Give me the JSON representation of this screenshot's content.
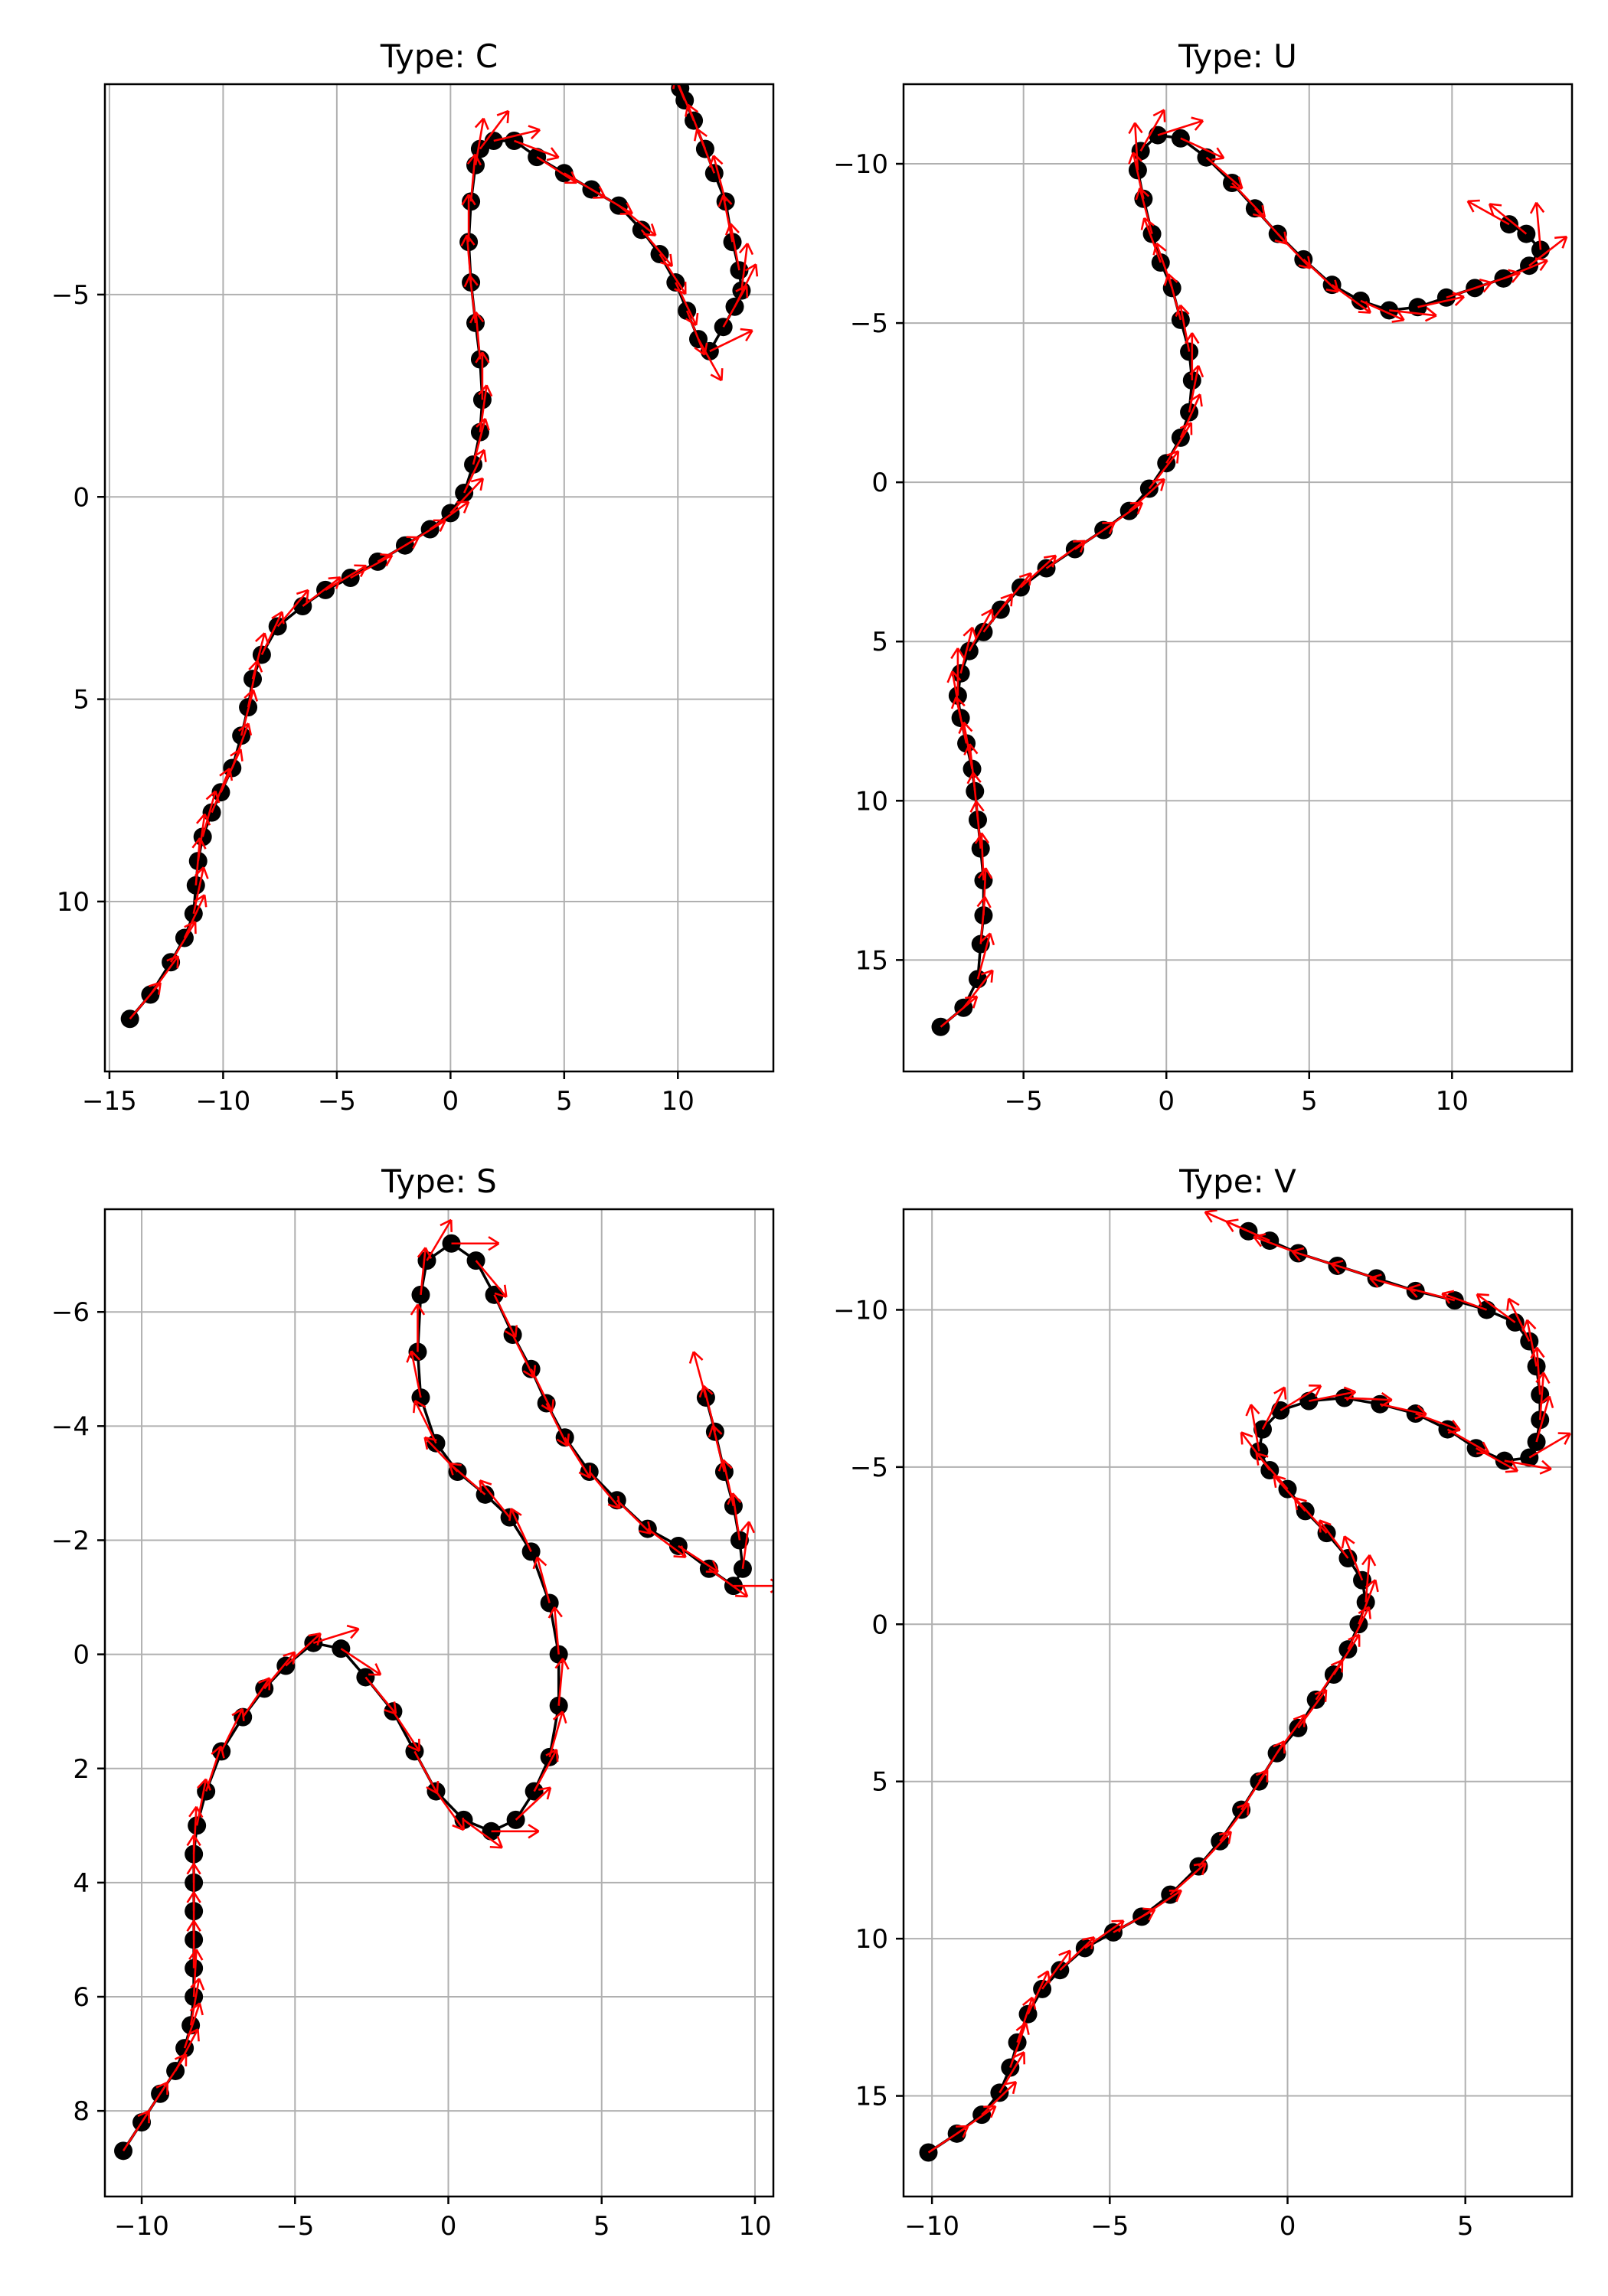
{
  "chart_data": [
    {
      "type": "scatter",
      "title": "Type: C",
      "xlim": [
        -15.2,
        14.2
      ],
      "ylim": [
        -10.2,
        14.2
      ],
      "y_inverted": true,
      "grid": true,
      "xticks": [
        -15,
        -10,
        -5,
        0,
        5,
        10
      ],
      "xtick_labels": [
        "−15",
        "−10",
        "−5",
        "0",
        "5",
        "10"
      ],
      "yticks": [
        -5,
        0,
        5,
        10
      ],
      "ytick_labels": [
        "−5",
        "0",
        "5",
        "10"
      ],
      "line_color": "#000000",
      "marker_color": "#000000",
      "arrow_color": "#ff0000",
      "points": [
        [
          -14.1,
          12.9
        ],
        [
          -13.2,
          12.3
        ],
        [
          -12.3,
          11.5
        ],
        [
          -11.7,
          10.9
        ],
        [
          -11.3,
          10.3
        ],
        [
          -11.2,
          9.6
        ],
        [
          -11.1,
          9.0
        ],
        [
          -10.9,
          8.4
        ],
        [
          -10.5,
          7.8
        ],
        [
          -10.1,
          7.3
        ],
        [
          -9.6,
          6.7
        ],
        [
          -9.2,
          5.9
        ],
        [
          -8.9,
          5.2
        ],
        [
          -8.7,
          4.5
        ],
        [
          -8.3,
          3.9
        ],
        [
          -7.6,
          3.2
        ],
        [
          -6.5,
          2.7
        ],
        [
          -5.5,
          2.3
        ],
        [
          -4.4,
          2.0
        ],
        [
          -3.2,
          1.6
        ],
        [
          -2.0,
          1.2
        ],
        [
          -0.9,
          0.8
        ],
        [
          0.0,
          0.4
        ],
        [
          0.6,
          -0.1
        ],
        [
          1.0,
          -0.8
        ],
        [
          1.3,
          -1.6
        ],
        [
          1.4,
          -2.4
        ],
        [
          1.3,
          -3.4
        ],
        [
          1.1,
          -4.3
        ],
        [
          0.9,
          -5.3
        ],
        [
          0.8,
          -6.3
        ],
        [
          0.9,
          -7.3
        ],
        [
          1.1,
          -8.2
        ],
        [
          1.3,
          -8.6
        ],
        [
          1.9,
          -8.8
        ],
        [
          2.8,
          -8.8
        ],
        [
          3.8,
          -8.4
        ],
        [
          5.0,
          -8.0
        ],
        [
          6.2,
          -7.6
        ],
        [
          7.4,
          -7.2
        ],
        [
          8.4,
          -6.6
        ],
        [
          9.2,
          -6.0
        ],
        [
          9.9,
          -5.3
        ],
        [
          10.4,
          -4.6
        ],
        [
          10.9,
          -3.9
        ],
        [
          11.4,
          -3.6
        ],
        [
          12.0,
          -4.2
        ],
        [
          12.5,
          -4.7
        ],
        [
          12.8,
          -5.1
        ],
        [
          12.7,
          -5.6
        ],
        [
          12.4,
          -6.3
        ],
        [
          12.1,
          -7.3
        ],
        [
          11.6,
          -8.0
        ],
        [
          11.2,
          -8.6
        ],
        [
          10.7,
          -9.3
        ],
        [
          10.3,
          -9.8
        ],
        [
          10.1,
          -10.1
        ]
      ]
    },
    {
      "type": "scatter",
      "title": "Type: U",
      "xlim": [
        -9.2,
        14.2
      ],
      "ylim": [
        -12.5,
        18.5
      ],
      "y_inverted": true,
      "grid": true,
      "xticks": [
        -5,
        0,
        5,
        10
      ],
      "xtick_labels": [
        "−5",
        "0",
        "5",
        "10"
      ],
      "yticks": [
        -10,
        -5,
        0,
        5,
        10,
        15
      ],
      "ytick_labels": [
        "−10",
        "−5",
        "0",
        "5",
        "10",
        "15"
      ],
      "line_color": "#000000",
      "marker_color": "#000000",
      "arrow_color": "#ff0000",
      "points": [
        [
          -7.9,
          17.1
        ],
        [
          -7.1,
          16.5
        ],
        [
          -6.6,
          15.6
        ],
        [
          -6.5,
          14.5
        ],
        [
          -6.4,
          13.6
        ],
        [
          -6.4,
          12.5
        ],
        [
          -6.5,
          11.5
        ],
        [
          -6.6,
          10.6
        ],
        [
          -6.7,
          9.7
        ],
        [
          -6.8,
          9.0
        ],
        [
          -7.0,
          8.2
        ],
        [
          -7.2,
          7.4
        ],
        [
          -7.3,
          6.7
        ],
        [
          -7.2,
          6.0
        ],
        [
          -6.9,
          5.3
        ],
        [
          -6.4,
          4.7
        ],
        [
          -5.8,
          4.0
        ],
        [
          -5.1,
          3.3
        ],
        [
          -4.2,
          2.7
        ],
        [
          -3.2,
          2.1
        ],
        [
          -2.2,
          1.5
        ],
        [
          -1.3,
          0.9
        ],
        [
          -0.6,
          0.2
        ],
        [
          0.0,
          -0.6
        ],
        [
          0.5,
          -1.4
        ],
        [
          0.8,
          -2.2
        ],
        [
          0.9,
          -3.2
        ],
        [
          0.8,
          -4.1
        ],
        [
          0.5,
          -5.1
        ],
        [
          0.2,
          -6.1
        ],
        [
          -0.2,
          -6.9
        ],
        [
          -0.5,
          -7.8
        ],
        [
          -0.8,
          -8.9
        ],
        [
          -1.0,
          -9.8
        ],
        [
          -0.9,
          -10.4
        ],
        [
          -0.3,
          -10.9
        ],
        [
          0.5,
          -10.8
        ],
        [
          1.4,
          -10.2
        ],
        [
          2.3,
          -9.4
        ],
        [
          3.1,
          -8.6
        ],
        [
          3.9,
          -7.8
        ],
        [
          4.8,
          -7.0
        ],
        [
          5.8,
          -6.2
        ],
        [
          6.8,
          -5.7
        ],
        [
          7.8,
          -5.4
        ],
        [
          8.8,
          -5.5
        ],
        [
          9.8,
          -5.8
        ],
        [
          10.8,
          -6.1
        ],
        [
          11.8,
          -6.4
        ],
        [
          12.7,
          -6.8
        ],
        [
          13.1,
          -7.3
        ],
        [
          12.6,
          -7.8
        ],
        [
          12.0,
          -8.1
        ]
      ]
    },
    {
      "type": "scatter",
      "title": "Type: S",
      "xlim": [
        -11.2,
        10.6
      ],
      "ylim": [
        -7.8,
        9.5
      ],
      "y_inverted": true,
      "grid": true,
      "xticks": [
        -10,
        -5,
        0,
        5,
        10
      ],
      "xtick_labels": [
        "−10",
        "−5",
        "0",
        "5",
        "10"
      ],
      "yticks": [
        -6,
        -4,
        -2,
        0,
        2,
        4,
        6,
        8
      ],
      "ytick_labels": [
        "−6",
        "−4",
        "−2",
        "0",
        "2",
        "4",
        "6",
        "8"
      ],
      "line_color": "#000000",
      "marker_color": "#000000",
      "arrow_color": "#ff0000",
      "points": [
        [
          -10.6,
          8.7
        ],
        [
          -10.0,
          8.2
        ],
        [
          -9.4,
          7.7
        ],
        [
          -8.9,
          7.3
        ],
        [
          -8.6,
          6.9
        ],
        [
          -8.4,
          6.5
        ],
        [
          -8.3,
          6.0
        ],
        [
          -8.3,
          5.5
        ],
        [
          -8.3,
          5.0
        ],
        [
          -8.3,
          4.5
        ],
        [
          -8.3,
          4.0
        ],
        [
          -8.3,
          3.5
        ],
        [
          -8.2,
          3.0
        ],
        [
          -7.9,
          2.4
        ],
        [
          -7.4,
          1.7
        ],
        [
          -6.7,
          1.1
        ],
        [
          -6.0,
          0.6
        ],
        [
          -5.3,
          0.2
        ],
        [
          -4.4,
          -0.2
        ],
        [
          -3.5,
          -0.1
        ],
        [
          -2.7,
          0.4
        ],
        [
          -1.8,
          1.0
        ],
        [
          -1.1,
          1.7
        ],
        [
          -0.4,
          2.4
        ],
        [
          0.5,
          2.9
        ],
        [
          1.4,
          3.1
        ],
        [
          2.2,
          2.9
        ],
        [
          2.8,
          2.4
        ],
        [
          3.3,
          1.8
        ],
        [
          3.6,
          0.9
        ],
        [
          3.6,
          0.0
        ],
        [
          3.3,
          -0.9
        ],
        [
          2.7,
          -1.8
        ],
        [
          2.0,
          -2.4
        ],
        [
          1.2,
          -2.8
        ],
        [
          0.3,
          -3.2
        ],
        [
          -0.4,
          -3.7
        ],
        [
          -0.9,
          -4.5
        ],
        [
          -1.0,
          -5.3
        ],
        [
          -0.9,
          -6.3
        ],
        [
          -0.7,
          -6.9
        ],
        [
          0.1,
          -7.2
        ],
        [
          0.9,
          -6.9
        ],
        [
          1.5,
          -6.3
        ],
        [
          2.1,
          -5.6
        ],
        [
          2.7,
          -5.0
        ],
        [
          3.2,
          -4.4
        ],
        [
          3.8,
          -3.8
        ],
        [
          4.6,
          -3.2
        ],
        [
          5.5,
          -2.7
        ],
        [
          6.5,
          -2.2
        ],
        [
          7.5,
          -1.9
        ],
        [
          8.5,
          -1.5
        ],
        [
          9.3,
          -1.2
        ],
        [
          9.6,
          -1.5
        ],
        [
          9.5,
          -2.0
        ],
        [
          9.3,
          -2.6
        ],
        [
          9.0,
          -3.2
        ],
        [
          8.7,
          -3.9
        ],
        [
          8.4,
          -4.5
        ]
      ]
    },
    {
      "type": "scatter",
      "title": "Type: V",
      "xlim": [
        -10.8,
        8.0
      ],
      "ylim": [
        -13.2,
        18.2
      ],
      "y_inverted": true,
      "grid": true,
      "xticks": [
        -10,
        -5,
        0,
        5
      ],
      "xtick_labels": [
        "−10",
        "−5",
        "0",
        "5"
      ],
      "yticks": [
        -10,
        -5,
        0,
        5,
        10,
        15
      ],
      "ytick_labels": [
        "−10",
        "−5",
        "0",
        "5",
        "10",
        "15"
      ],
      "line_color": "#000000",
      "marker_color": "#000000",
      "arrow_color": "#ff0000",
      "points": [
        [
          -10.1,
          16.8
        ],
        [
          -9.3,
          16.2
        ],
        [
          -8.6,
          15.6
        ],
        [
          -8.1,
          14.9
        ],
        [
          -7.8,
          14.1
        ],
        [
          -7.6,
          13.3
        ],
        [
          -7.3,
          12.4
        ],
        [
          -6.9,
          11.6
        ],
        [
          -6.4,
          11.0
        ],
        [
          -5.7,
          10.3
        ],
        [
          -4.9,
          9.8
        ],
        [
          -4.1,
          9.3
        ],
        [
          -3.3,
          8.6
        ],
        [
          -2.5,
          7.7
        ],
        [
          -1.9,
          6.9
        ],
        [
          -1.3,
          5.9
        ],
        [
          -0.8,
          5.0
        ],
        [
          -0.3,
          4.1
        ],
        [
          0.3,
          3.3
        ],
        [
          0.8,
          2.4
        ],
        [
          1.3,
          1.6
        ],
        [
          1.7,
          0.8
        ],
        [
          2.0,
          0.0
        ],
        [
          2.2,
          -0.7
        ],
        [
          2.1,
          -1.4
        ],
        [
          1.7,
          -2.1
        ],
        [
          1.1,
          -2.9
        ],
        [
          0.5,
          -3.6
        ],
        [
          0.0,
          -4.3
        ],
        [
          -0.5,
          -4.9
        ],
        [
          -0.8,
          -5.5
        ],
        [
          -0.7,
          -6.2
        ],
        [
          -0.2,
          -6.8
        ],
        [
          0.6,
          -7.1
        ],
        [
          1.6,
          -7.2
        ],
        [
          2.6,
          -7.0
        ],
        [
          3.6,
          -6.7
        ],
        [
          4.5,
          -6.2
        ],
        [
          5.3,
          -5.6
        ],
        [
          6.1,
          -5.2
        ],
        [
          6.8,
          -5.3
        ],
        [
          7.0,
          -5.8
        ],
        [
          7.1,
          -6.5
        ],
        [
          7.1,
          -7.3
        ],
        [
          7.0,
          -8.2
        ],
        [
          6.8,
          -9.0
        ],
        [
          6.4,
          -9.6
        ],
        [
          5.6,
          -10.0
        ],
        [
          4.7,
          -10.3
        ],
        [
          3.6,
          -10.6
        ],
        [
          2.5,
          -11.0
        ],
        [
          1.4,
          -11.4
        ],
        [
          0.3,
          -11.8
        ],
        [
          -0.5,
          -12.2
        ],
        [
          -1.1,
          -12.5
        ]
      ]
    }
  ]
}
